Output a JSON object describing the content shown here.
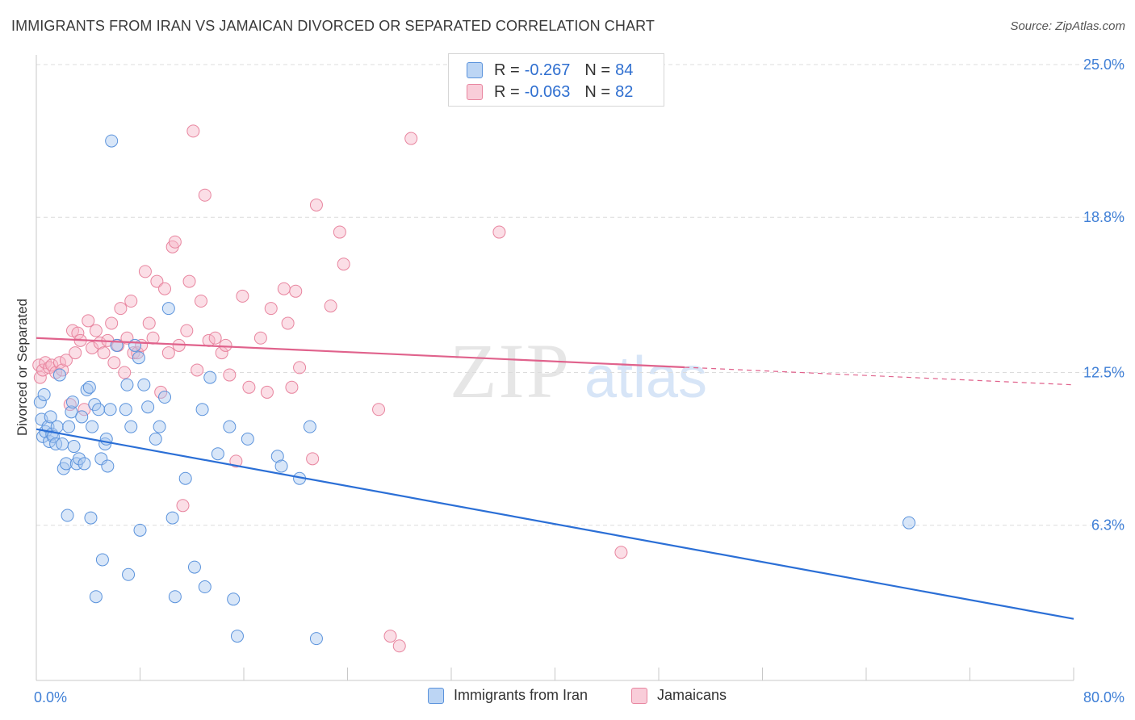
{
  "header": {
    "title": "IMMIGRANTS FROM IRAN VS JAMAICAN DIVORCED OR SEPARATED CORRELATION CHART",
    "source": "Source: ZipAtlas.com"
  },
  "watermark": {
    "zip": "ZIP",
    "atlas": "atlas"
  },
  "legend_top": {
    "rows": [
      {
        "r_label": "R = ",
        "r_value": "-0.267",
        "n_label": "N = ",
        "n_value": "84"
      },
      {
        "r_label": "R = ",
        "r_value": "-0.063",
        "n_label": "N = ",
        "n_value": "82"
      }
    ]
  },
  "bottom_legend": {
    "items": [
      {
        "label": "Immigrants from Iran"
      },
      {
        "label": "Jamaicans"
      }
    ]
  },
  "colors": {
    "blue_fill": "#a9c8f0",
    "blue_stroke": "#5b93dc",
    "blue_line": "#2b6fd6",
    "pink_fill": "#f6b6c8",
    "pink_stroke": "#e8859f",
    "pink_line": "#e0628c",
    "axis_text": "#3f7fd6",
    "grid": "#dcdcdc"
  },
  "chart_data": {
    "type": "scatter",
    "title": "IMMIGRANTS FROM IRAN VS JAMAICAN DIVORCED OR SEPARATED CORRELATION CHART",
    "xlabel": "",
    "ylabel": "Divorced or Separated",
    "xlim": [
      0,
      80
    ],
    "ylim": [
      0,
      25
    ],
    "x_tick_labels": [
      "0.0%",
      "80.0%"
    ],
    "y_ticks": [
      6.3,
      12.5,
      18.8,
      25.0
    ],
    "y_tick_labels": [
      "6.3%",
      "12.5%",
      "18.8%",
      "25.0%"
    ],
    "grid": "horizontal dashed",
    "legend_position": "bottom",
    "series": [
      {
        "name": "Immigrants from Iran",
        "color": "#5b93dc",
        "trend": {
          "x": [
            0,
            80
          ],
          "y": [
            10.2,
            2.5
          ]
        },
        "points": [
          [
            0.3,
            11.3
          ],
          [
            0.4,
            10.6
          ],
          [
            0.5,
            9.9
          ],
          [
            0.6,
            11.6
          ],
          [
            0.7,
            10.1
          ],
          [
            0.9,
            10.3
          ],
          [
            1.0,
            9.7
          ],
          [
            1.1,
            10.7
          ],
          [
            1.2,
            10.0
          ],
          [
            1.3,
            9.9
          ],
          [
            1.5,
            9.6
          ],
          [
            1.6,
            10.3
          ],
          [
            1.8,
            12.4
          ],
          [
            2.0,
            9.6
          ],
          [
            2.1,
            8.6
          ],
          [
            2.3,
            8.8
          ],
          [
            2.4,
            6.7
          ],
          [
            2.5,
            10.3
          ],
          [
            2.7,
            10.9
          ],
          [
            2.8,
            11.3
          ],
          [
            2.9,
            9.5
          ],
          [
            3.1,
            8.8
          ],
          [
            3.3,
            9.0
          ],
          [
            3.5,
            10.7
          ],
          [
            3.7,
            8.8
          ],
          [
            3.9,
            11.8
          ],
          [
            4.1,
            11.9
          ],
          [
            4.2,
            6.6
          ],
          [
            4.3,
            10.3
          ],
          [
            4.5,
            11.2
          ],
          [
            4.6,
            3.4
          ],
          [
            4.8,
            11.0
          ],
          [
            5.0,
            9.0
          ],
          [
            5.1,
            4.9
          ],
          [
            5.3,
            9.6
          ],
          [
            5.4,
            9.8
          ],
          [
            5.5,
            8.7
          ],
          [
            5.7,
            11.0
          ],
          [
            5.8,
            21.9
          ],
          [
            6.2,
            13.6
          ],
          [
            6.9,
            11.0
          ],
          [
            7.0,
            12.0
          ],
          [
            7.1,
            4.3
          ],
          [
            7.3,
            10.3
          ],
          [
            7.6,
            13.6
          ],
          [
            7.9,
            13.1
          ],
          [
            8.0,
            6.1
          ],
          [
            8.3,
            12.0
          ],
          [
            8.6,
            11.1
          ],
          [
            9.2,
            9.8
          ],
          [
            9.5,
            10.3
          ],
          [
            9.9,
            11.5
          ],
          [
            10.2,
            15.1
          ],
          [
            10.5,
            6.6
          ],
          [
            10.7,
            3.4
          ],
          [
            11.5,
            8.2
          ],
          [
            12.2,
            4.6
          ],
          [
            12.8,
            11.0
          ],
          [
            13.0,
            3.8
          ],
          [
            13.4,
            12.3
          ],
          [
            14.0,
            9.2
          ],
          [
            14.9,
            10.3
          ],
          [
            15.2,
            3.3
          ],
          [
            15.5,
            1.8
          ],
          [
            16.3,
            9.8
          ],
          [
            18.6,
            9.1
          ],
          [
            18.9,
            8.7
          ],
          [
            20.3,
            8.2
          ],
          [
            21.1,
            10.3
          ],
          [
            21.6,
            1.7
          ],
          [
            67.3,
            6.4
          ]
        ]
      },
      {
        "name": "Jamaicans",
        "color": "#e8859f",
        "trend": {
          "x": [
            0,
            80
          ],
          "y": [
            13.9,
            12.0
          ],
          "solid_until_x": 50
        },
        "points": [
          [
            0.2,
            12.8
          ],
          [
            0.3,
            12.3
          ],
          [
            0.5,
            12.6
          ],
          [
            0.7,
            12.9
          ],
          [
            1.0,
            12.7
          ],
          [
            1.2,
            12.8
          ],
          [
            1.5,
            12.5
          ],
          [
            1.8,
            12.9
          ],
          [
            2.0,
            12.6
          ],
          [
            2.3,
            13.0
          ],
          [
            2.6,
            11.2
          ],
          [
            2.8,
            14.2
          ],
          [
            3.0,
            13.3
          ],
          [
            3.2,
            14.1
          ],
          [
            3.4,
            13.8
          ],
          [
            3.7,
            11.0
          ],
          [
            4.0,
            14.6
          ],
          [
            4.3,
            13.5
          ],
          [
            4.6,
            14.2
          ],
          [
            4.9,
            13.7
          ],
          [
            5.2,
            13.3
          ],
          [
            5.5,
            13.8
          ],
          [
            5.8,
            14.5
          ],
          [
            6.0,
            12.9
          ],
          [
            6.3,
            13.6
          ],
          [
            6.5,
            15.1
          ],
          [
            6.8,
            12.5
          ],
          [
            7.0,
            13.9
          ],
          [
            7.3,
            15.4
          ],
          [
            7.5,
            13.3
          ],
          [
            7.8,
            13.3
          ],
          [
            8.1,
            13.6
          ],
          [
            8.4,
            16.6
          ],
          [
            8.7,
            14.5
          ],
          [
            9.0,
            13.9
          ],
          [
            9.3,
            16.2
          ],
          [
            9.6,
            11.7
          ],
          [
            9.9,
            15.9
          ],
          [
            10.2,
            13.3
          ],
          [
            10.5,
            17.6
          ],
          [
            10.7,
            17.8
          ],
          [
            11.0,
            13.6
          ],
          [
            11.3,
            7.1
          ],
          [
            11.6,
            14.2
          ],
          [
            11.8,
            16.2
          ],
          [
            12.1,
            22.3
          ],
          [
            12.4,
            12.6
          ],
          [
            12.7,
            15.4
          ],
          [
            13.0,
            19.7
          ],
          [
            13.3,
            13.8
          ],
          [
            13.8,
            13.9
          ],
          [
            14.3,
            13.3
          ],
          [
            14.6,
            13.6
          ],
          [
            14.9,
            12.4
          ],
          [
            15.4,
            8.9
          ],
          [
            15.9,
            15.6
          ],
          [
            16.4,
            11.9
          ],
          [
            17.3,
            13.9
          ],
          [
            17.8,
            11.7
          ],
          [
            18.1,
            15.1
          ],
          [
            19.1,
            15.9
          ],
          [
            19.4,
            14.5
          ],
          [
            19.7,
            11.9
          ],
          [
            20.0,
            15.8
          ],
          [
            20.3,
            12.7
          ],
          [
            21.3,
            9.0
          ],
          [
            21.6,
            19.3
          ],
          [
            22.7,
            15.2
          ],
          [
            23.4,
            18.2
          ],
          [
            23.7,
            16.9
          ],
          [
            26.4,
            11.0
          ],
          [
            27.3,
            1.8
          ],
          [
            28.0,
            1.4
          ],
          [
            28.9,
            22.0
          ],
          [
            35.7,
            18.2
          ],
          [
            45.1,
            5.2
          ]
        ]
      }
    ]
  }
}
